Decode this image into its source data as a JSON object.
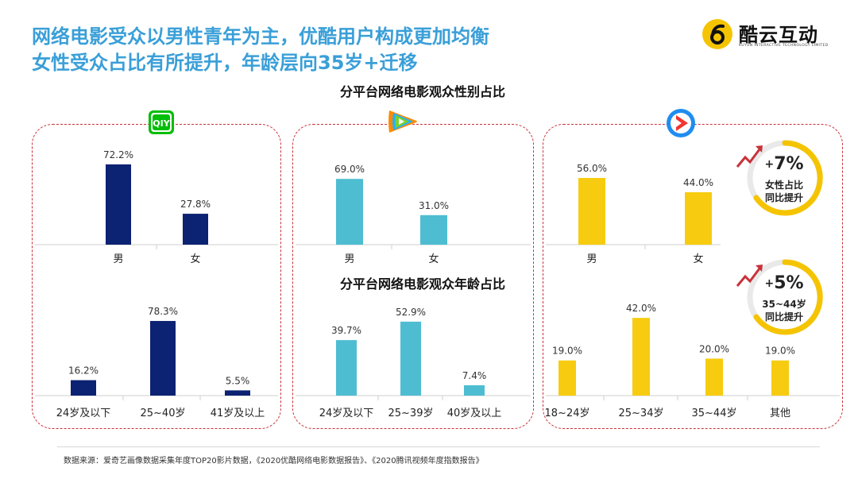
{
  "headline": {
    "line1": "网络电影受众以男性青年为主，优酷用户构成更加均衡",
    "line2": "女性受众占比有所提升，年龄层向35岁+迁移"
  },
  "logo": {
    "name": "酷云互动",
    "en": "KUYUN INTERACTIVE TECHNOLOGY LIMITED"
  },
  "platforms": {
    "iqiyi": {
      "icon": "iqiyi-logo-icon",
      "label": "QIY",
      "color": "#00be06"
    },
    "tencent": {
      "icon": "tencent-video-logo-icon"
    },
    "youku": {
      "icon": "youku-logo-icon",
      "color": "#1f8df0"
    }
  },
  "titles": {
    "gender": "分平台网络电影观众性别占比",
    "age": "分平台网络电影观众年龄占比"
  },
  "badges": [
    {
      "prefix": "+",
      "value": "7%",
      "line1": "女性占比",
      "line2": "同比提升"
    },
    {
      "prefix": "+",
      "value": "5%",
      "line1": "35~44岁",
      "line2": "同比提升"
    }
  ],
  "source": "数据来源：爱奇艺画像数据采集年度TOP20影片数据，《2020优酷网络电影数据报告》、《2020腾讯视频年度指数报告》",
  "colors": {
    "iqiyi": "#0c2272",
    "tencent": "#4ebdd2",
    "youku": "#f7cc10",
    "panel_border": "#c8323a",
    "headline": "#3a9fd8",
    "badge_ring": "#f5c400",
    "arrow": "#c8323a"
  },
  "chart_data": [
    {
      "platform": "iqiyi",
      "type": "bar",
      "categories": [
        "男",
        "女"
      ],
      "values": [
        72.2,
        27.8
      ],
      "labels": [
        "72.2%",
        "27.8%"
      ]
    },
    {
      "platform": "tencent",
      "type": "bar",
      "categories": [
        "男",
        "女"
      ],
      "values": [
        69.0,
        31.0
      ],
      "labels": [
        "69.0%",
        "31.0%"
      ]
    },
    {
      "platform": "youku",
      "type": "bar",
      "categories": [
        "男",
        "女"
      ],
      "values": [
        56.0,
        44.0
      ],
      "labels": [
        "56.0%",
        "44.0%"
      ]
    },
    {
      "platform": "iqiyi",
      "type": "bar",
      "categories": [
        "24岁及以下",
        "25~40岁",
        "41岁及以上"
      ],
      "values": [
        16.2,
        78.3,
        5.5
      ],
      "labels": [
        "16.2%",
        "78.3%",
        "5.5%"
      ]
    },
    {
      "platform": "tencent",
      "type": "bar",
      "categories": [
        "24岁及以下",
        "25~39岁",
        "40岁及以上"
      ],
      "values": [
        39.7,
        52.9,
        7.4
      ],
      "labels": [
        "39.7%",
        "52.9%",
        "7.4%"
      ]
    },
    {
      "platform": "youku",
      "type": "bar",
      "categories": [
        "18~24岁",
        "25~34岁",
        "35~44岁",
        "其他"
      ],
      "values": [
        19.0,
        42.0,
        20.0,
        19.0
      ],
      "labels": [
        "19.0%",
        "42.0%",
        "20.0%",
        "19.0%"
      ]
    }
  ]
}
